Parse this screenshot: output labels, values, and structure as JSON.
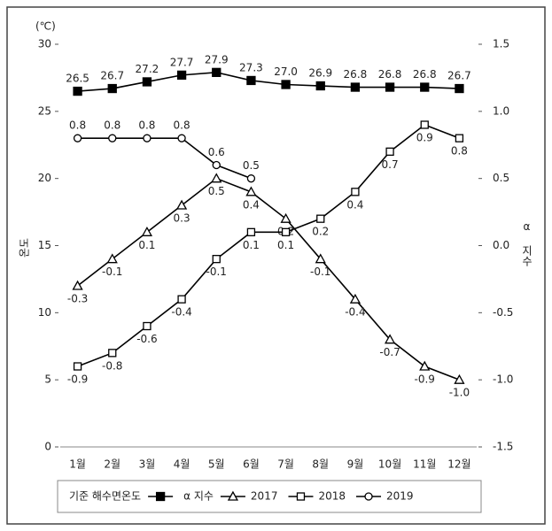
{
  "chart_data": {
    "type": "line",
    "y_unit": "(℃)",
    "y_label": "온도",
    "y2_label": "α 지수",
    "categories": [
      "1월",
      "2월",
      "3월",
      "4월",
      "5월",
      "6월",
      "7월",
      "8월",
      "9월",
      "10월",
      "11월",
      "12월"
    ],
    "ylim": [
      0,
      30
    ],
    "yticks": [
      0,
      5,
      10,
      15,
      20,
      25,
      30
    ],
    "y2lim": [
      -1.5,
      1.5
    ],
    "y2ticks": [
      -1.5,
      {
        "value": -1,
        "label": "-1.0"
      },
      -0.5,
      {
        "value": 0,
        "label": "0.0"
      },
      0.5,
      {
        "value": 1,
        "label": "1.0"
      },
      1.5
    ],
    "legend_group": "α 지수",
    "series": [
      {
        "name": "기준 해수면온도",
        "color": "#000000",
        "marker": "square-filled",
        "values": [
          26.5,
          26.7,
          27.2,
          27.7,
          27.9,
          27.3,
          27.0,
          26.9,
          26.8,
          26.8,
          26.8,
          26.7
        ],
        "value_labels": [
          "26.5",
          "26.7",
          "27.2",
          "27.7",
          "27.9",
          "27.3",
          "27.0",
          "26.9",
          "26.8",
          "26.8",
          "26.8",
          "26.7"
        ]
      },
      {
        "name": "2017",
        "color": "#000000",
        "marker": "triangle",
        "axis": "y2",
        "values": [
          -0.3,
          -0.1,
          0.1,
          0.3,
          0.5,
          0.4,
          0.2,
          -0.1,
          -0.4,
          -0.7,
          -0.9,
          -1.0
        ],
        "value_labels": [
          "-0.3",
          "-0.1",
          "0.1",
          "0.3",
          "0.5",
          "0.4",
          "0.2",
          "-0.1",
          "-0.4",
          "-0.7",
          "-0.9",
          "-1.0"
        ]
      },
      {
        "name": "2018",
        "color": "#000000",
        "marker": "square",
        "axis": "y2",
        "values": [
          -0.9,
          -0.8,
          -0.6,
          -0.4,
          -0.1,
          0.1,
          0.1,
          0.2,
          0.4,
          0.7,
          0.9,
          0.8
        ],
        "value_labels": [
          "-0.9",
          "-0.8",
          "-0.6",
          "-0.4",
          "-0.1",
          "0.1",
          "0.1",
          "0.2",
          "0.4",
          "0.7",
          "0.9",
          "0.8"
        ]
      },
      {
        "name": "2019",
        "color": "#000000",
        "marker": "circle",
        "axis": "y2",
        "values": [
          0.8,
          0.8,
          0.8,
          0.8,
          0.6,
          0.5,
          null,
          null,
          null,
          null,
          null,
          null
        ],
        "value_labels": [
          "0.8",
          "0.8",
          "0.8",
          "0.8",
          "0.6",
          "0.5",
          null,
          null,
          null,
          null,
          null,
          null
        ]
      }
    ]
  }
}
